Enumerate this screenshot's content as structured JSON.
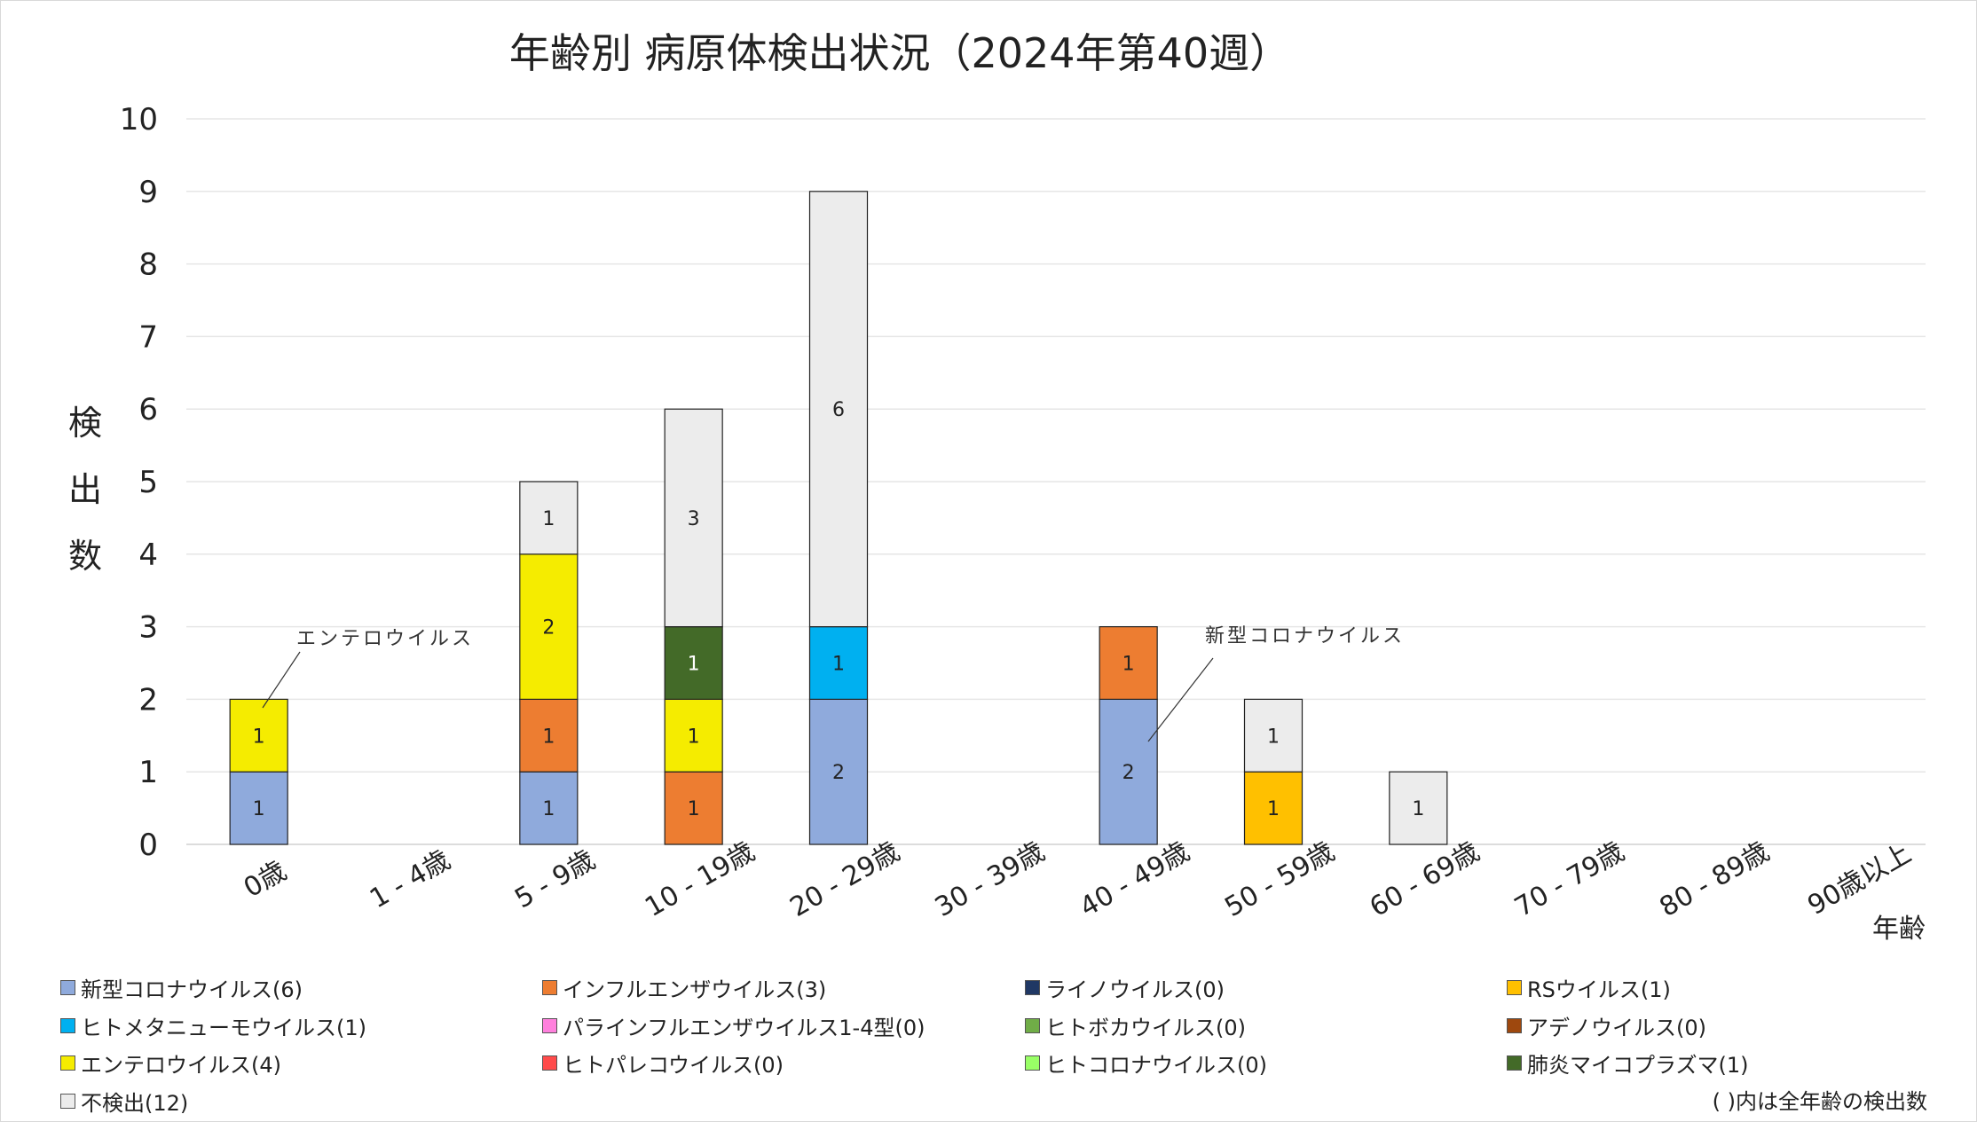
{
  "chart_data": {
    "type": "bar",
    "stacked": true,
    "title": "年齢別 病原体検出状況（2024年第40週）",
    "ylabel": "検出数",
    "xlabel": "年齢",
    "ylim": [
      0,
      10
    ],
    "yticks": [
      "0",
      "1",
      "2",
      "3",
      "4",
      "5",
      "6",
      "7",
      "8",
      "9",
      "10"
    ],
    "grid": true,
    "legend_position": "bottom",
    "categories": [
      "0歳",
      "1 - 4歳",
      "5 - 9歳",
      "10 - 19歳",
      "20 - 29歳",
      "30 - 39歳",
      "40 - 49歳",
      "50 - 59歳",
      "60 - 69歳",
      "70 - 79歳",
      "80 - 89歳",
      "90歳以上"
    ],
    "series": [
      {
        "name": "新型コロナウイルス(6)",
        "color": "#8faadc",
        "values": [
          1,
          0,
          1,
          0,
          2,
          0,
          2,
          0,
          0,
          0,
          0,
          0
        ]
      },
      {
        "name": "インフルエンザウイルス(3)",
        "color": "#ed7d31",
        "values": [
          0,
          0,
          1,
          1,
          0,
          0,
          1,
          0,
          0,
          0,
          0,
          0
        ]
      },
      {
        "name": "ライノウイルス(0)",
        "color": "#203864",
        "values": [
          0,
          0,
          0,
          0,
          0,
          0,
          0,
          0,
          0,
          0,
          0,
          0
        ]
      },
      {
        "name": "RSウイルス(1)",
        "color": "#ffc000",
        "values": [
          0,
          0,
          0,
          0,
          0,
          0,
          0,
          1,
          0,
          0,
          0,
          0
        ]
      },
      {
        "name": "ヒトメタニューモウイルス(1)",
        "color": "#00b0f0",
        "values": [
          0,
          0,
          0,
          0,
          1,
          0,
          0,
          0,
          0,
          0,
          0,
          0
        ]
      },
      {
        "name": "パラインフルエンザウイルス1-4型(0)",
        "color": "#ff80dd",
        "values": [
          0,
          0,
          0,
          0,
          0,
          0,
          0,
          0,
          0,
          0,
          0,
          0
        ]
      },
      {
        "name": "ヒトボカウイルス(0)",
        "color": "#70ad47",
        "values": [
          0,
          0,
          0,
          0,
          0,
          0,
          0,
          0,
          0,
          0,
          0,
          0
        ]
      },
      {
        "name": "アデノウイルス(0)",
        "color": "#9e480e",
        "values": [
          0,
          0,
          0,
          0,
          0,
          0,
          0,
          0,
          0,
          0,
          0,
          0
        ]
      },
      {
        "name": "エンテロウイルス(4)",
        "color": "#f5ec00",
        "values": [
          1,
          0,
          2,
          1,
          0,
          0,
          0,
          0,
          0,
          0,
          0,
          0
        ]
      },
      {
        "name": "ヒトパレコウイルス(0)",
        "color": "#ff4b4b",
        "values": [
          0,
          0,
          0,
          0,
          0,
          0,
          0,
          0,
          0,
          0,
          0,
          0
        ]
      },
      {
        "name": "ヒトコロナウイルス(0)",
        "color": "#99ff66",
        "values": [
          0,
          0,
          0,
          0,
          0,
          0,
          0,
          0,
          0,
          0,
          0,
          0
        ]
      },
      {
        "name": "肺炎マイコプラズマ(1)",
        "color": "#436a28",
        "values": [
          0,
          0,
          0,
          1,
          0,
          0,
          0,
          0,
          0,
          0,
          0,
          0
        ]
      },
      {
        "name": "不検出(12)",
        "color": "#ececec",
        "values": [
          0,
          0,
          1,
          3,
          6,
          0,
          0,
          1,
          1,
          0,
          0,
          0
        ]
      }
    ],
    "annotations": [
      {
        "text": "エンテロウイルス",
        "category": "0歳"
      },
      {
        "text": "新型コロナウイルス",
        "category": "40 - 49歳"
      }
    ],
    "footnote": "( )内は全年齢の検出数"
  }
}
